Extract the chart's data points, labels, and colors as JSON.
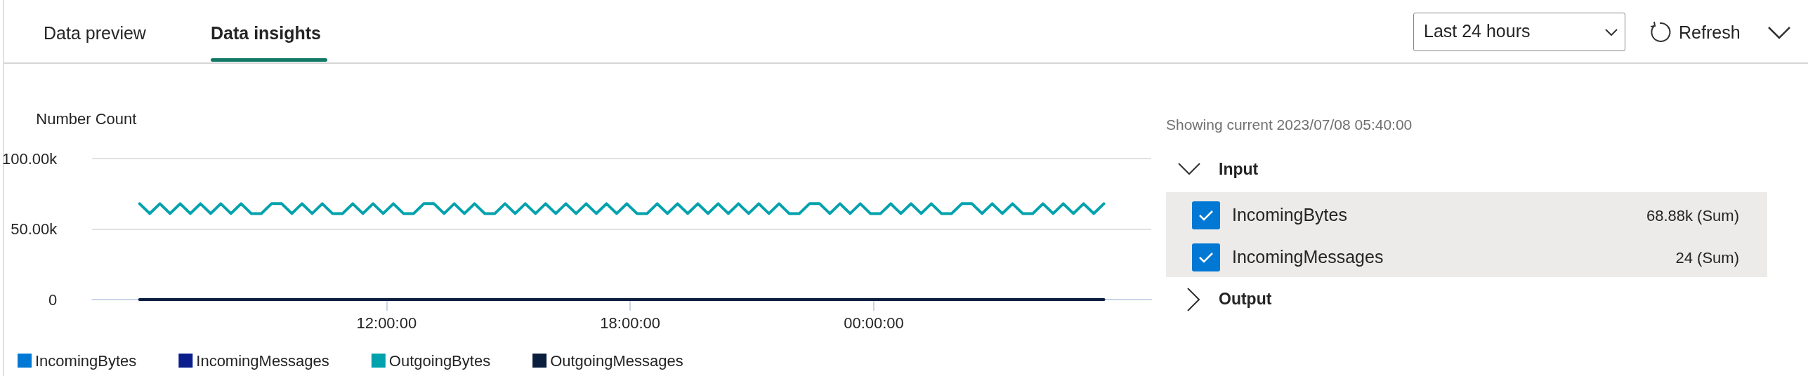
{
  "chart_data": {
    "type": "line",
    "ylabel": "Number Count",
    "x": [
      "2023-07-07T05:55",
      "2023-07-07T06:10",
      "2023-07-07T06:25",
      "2023-07-07T06:40",
      "2023-07-07T06:55",
      "2023-07-07T07:10",
      "2023-07-07T07:25",
      "2023-07-07T07:40",
      "2023-07-07T07:55",
      "2023-07-07T08:10",
      "2023-07-07T08:25",
      "2023-07-07T08:40",
      "2023-07-07T08:55",
      "2023-07-07T09:10",
      "2023-07-07T09:25",
      "2023-07-07T09:40",
      "2023-07-07T09:55",
      "2023-07-07T10:10",
      "2023-07-07T10:25",
      "2023-07-07T10:40",
      "2023-07-07T10:55",
      "2023-07-07T11:10",
      "2023-07-07T11:25",
      "2023-07-07T11:40",
      "2023-07-07T11:55",
      "2023-07-07T12:10",
      "2023-07-07T12:25",
      "2023-07-07T12:40",
      "2023-07-07T12:55",
      "2023-07-07T13:10",
      "2023-07-07T13:25",
      "2023-07-07T13:40",
      "2023-07-07T13:55",
      "2023-07-07T14:10",
      "2023-07-07T14:25",
      "2023-07-07T14:40",
      "2023-07-07T14:55",
      "2023-07-07T15:10",
      "2023-07-07T15:25",
      "2023-07-07T15:40",
      "2023-07-07T15:55",
      "2023-07-07T16:10",
      "2023-07-07T16:25",
      "2023-07-07T16:40",
      "2023-07-07T16:55",
      "2023-07-07T17:10",
      "2023-07-07T17:25",
      "2023-07-07T17:40",
      "2023-07-07T17:55",
      "2023-07-07T18:10",
      "2023-07-07T18:25",
      "2023-07-07T18:40",
      "2023-07-07T18:55",
      "2023-07-07T19:10",
      "2023-07-07T19:25",
      "2023-07-07T19:40",
      "2023-07-07T19:55",
      "2023-07-07T20:10",
      "2023-07-07T20:25",
      "2023-07-07T20:40",
      "2023-07-07T20:55",
      "2023-07-07T21:10",
      "2023-07-07T21:25",
      "2023-07-07T21:40",
      "2023-07-07T21:55",
      "2023-07-07T22:10",
      "2023-07-07T22:25",
      "2023-07-07T22:40",
      "2023-07-07T22:55",
      "2023-07-07T23:10",
      "2023-07-07T23:25",
      "2023-07-07T23:40",
      "2023-07-07T23:55",
      "2023-07-08T00:10",
      "2023-07-08T00:25",
      "2023-07-08T00:40",
      "2023-07-08T00:55",
      "2023-07-08T01:10",
      "2023-07-08T01:25",
      "2023-07-08T01:40",
      "2023-07-08T01:55",
      "2023-07-08T02:10",
      "2023-07-08T02:25",
      "2023-07-08T02:40",
      "2023-07-08T02:55",
      "2023-07-08T03:10",
      "2023-07-08T03:25",
      "2023-07-08T03:40",
      "2023-07-08T03:55",
      "2023-07-08T04:10",
      "2023-07-08T04:25",
      "2023-07-08T04:40",
      "2023-07-08T04:55",
      "2023-07-08T05:10",
      "2023-07-08T05:25",
      "2023-07-08T05:40"
    ],
    "series": [
      {
        "name": "IncomingBytes",
        "color": "#0078d4",
        "values": [
          null,
          null,
          null,
          null,
          null,
          null,
          null,
          null,
          null,
          null,
          null,
          null,
          null,
          null,
          null,
          null,
          null,
          null,
          null,
          null,
          null,
          null,
          null,
          null,
          null,
          null,
          null,
          null,
          null,
          null,
          null,
          null,
          null,
          null,
          null,
          null,
          null,
          null,
          null,
          null,
          null,
          null,
          null,
          null,
          null,
          null,
          null,
          null,
          null,
          null,
          null,
          null,
          null,
          null,
          null,
          null,
          null,
          null,
          null,
          null,
          null,
          null,
          null,
          null,
          null,
          null,
          null,
          null,
          null,
          null,
          null,
          null,
          null,
          null,
          null,
          null,
          null,
          null,
          null,
          null,
          null,
          null,
          null,
          null,
          null,
          null,
          null,
          null,
          null,
          null,
          null,
          null,
          null,
          null,
          null,
          null
        ]
      },
      {
        "name": "IncomingMessages",
        "color": "#0a1e8c",
        "values": [
          null,
          null,
          null,
          null,
          null,
          null,
          null,
          null,
          null,
          null,
          null,
          null,
          null,
          null,
          null,
          null,
          null,
          null,
          null,
          null,
          null,
          null,
          null,
          null,
          null,
          null,
          null,
          null,
          null,
          null,
          null,
          null,
          null,
          null,
          null,
          null,
          null,
          null,
          null,
          null,
          null,
          null,
          null,
          null,
          null,
          null,
          null,
          null,
          null,
          null,
          null,
          null,
          null,
          null,
          null,
          null,
          null,
          null,
          null,
          null,
          null,
          null,
          null,
          null,
          null,
          null,
          null,
          null,
          null,
          null,
          null,
          null,
          null,
          null,
          null,
          null,
          null,
          null,
          null,
          null,
          null,
          null,
          null,
          null,
          null,
          null,
          null,
          null,
          null,
          null,
          null,
          null,
          null,
          null,
          null,
          null
        ]
      },
      {
        "name": "OutgoingBytes",
        "color": "#00a2ad",
        "values": [
          68000,
          61000,
          68000,
          61000,
          68000,
          61000,
          68000,
          61000,
          68000,
          61000,
          68000,
          61000,
          61000,
          68000,
          68000,
          61000,
          68000,
          61000,
          68000,
          61000,
          61000,
          68000,
          61000,
          68000,
          61000,
          68000,
          61000,
          61000,
          68000,
          68000,
          61000,
          68000,
          61000,
          68000,
          61000,
          61000,
          68000,
          61000,
          68000,
          61000,
          68000,
          61000,
          68000,
          61000,
          68000,
          61000,
          68000,
          61000,
          68000,
          61000,
          61000,
          68000,
          61000,
          68000,
          61000,
          68000,
          61000,
          68000,
          61000,
          68000,
          61000,
          68000,
          61000,
          68000,
          61000,
          61000,
          68000,
          68000,
          61000,
          68000,
          61000,
          68000,
          61000,
          61000,
          68000,
          61000,
          68000,
          61000,
          68000,
          61000,
          61000,
          68000,
          68000,
          61000,
          68000,
          61000,
          68000,
          61000,
          61000,
          68000,
          61000,
          68000,
          61000,
          68000,
          61000,
          68000
        ]
      },
      {
        "name": "OutgoingMessages",
        "color": "#0b1e3d",
        "values": [
          0,
          0,
          0,
          0,
          0,
          0,
          0,
          0,
          0,
          0,
          0,
          0,
          0,
          0,
          0,
          0,
          0,
          0,
          0,
          0,
          0,
          0,
          0,
          0,
          0,
          0,
          0,
          0,
          0,
          0,
          0,
          0,
          0,
          0,
          0,
          0,
          0,
          0,
          0,
          0,
          0,
          0,
          0,
          0,
          0,
          0,
          0,
          0,
          0,
          0,
          0,
          0,
          0,
          0,
          0,
          0,
          0,
          0,
          0,
          0,
          0,
          0,
          0,
          0,
          0,
          0,
          0,
          0,
          0,
          0,
          0,
          0,
          0,
          0,
          0,
          0,
          0,
          0,
          0,
          0,
          0,
          0,
          0,
          0,
          0,
          0,
          0,
          0,
          0,
          0,
          0,
          0,
          0,
          0,
          0,
          0
        ]
      }
    ],
    "xlim": [
      "2023-07-07T04:45",
      "2023-07-08T06:50"
    ],
    "xticks": [
      {
        "value": "2023-07-07T12:00",
        "label": "12:00:00"
      },
      {
        "value": "2023-07-07T18:00",
        "label": "18:00:00"
      },
      {
        "value": "2023-07-08T00:00",
        "label": "00:00:00"
      }
    ],
    "ylim": [
      0,
      100000
    ],
    "yticks": [
      {
        "value": 0,
        "label": "0"
      },
      {
        "value": 50000,
        "label": "50.00k"
      },
      {
        "value": 100000,
        "label": "100.00k"
      }
    ],
    "grid": "y",
    "legend": "bottom",
    "marker": "none",
    "line_style": "solid",
    "annotations": [
      "Data preview",
      "Data insights",
      "Last 24 hours",
      "Refresh",
      "Showing current 2023/07/08 05:40:00",
      "Input",
      "IncomingBytes",
      "68.88k (Sum)",
      "IncomingMessages",
      "24 (Sum)",
      "Output"
    ]
  }
}
